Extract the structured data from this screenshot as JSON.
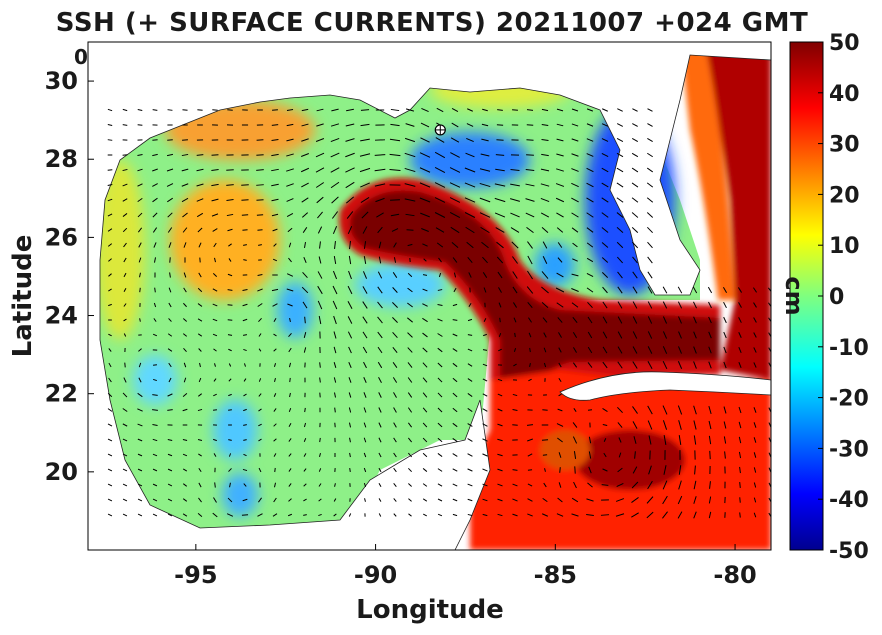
{
  "title": "SSH (+ SURFACE CURRENTS) 20211007 +024 GMT",
  "corner_label": "0",
  "map": {
    "xlabel": "Longitude",
    "ylabel": "Latitude",
    "xlim": [
      -98,
      -79
    ],
    "ylim": [
      18,
      31
    ],
    "xticks": [
      {
        "value": -95,
        "label": "-95"
      },
      {
        "value": -90,
        "label": "-90"
      },
      {
        "value": -85,
        "label": "-85"
      },
      {
        "value": -80,
        "label": "-80"
      }
    ],
    "yticks": [
      {
        "value": 20,
        "label": "20"
      },
      {
        "value": 22,
        "label": "22"
      },
      {
        "value": 24,
        "label": "24"
      },
      {
        "value": 26,
        "label": "26"
      },
      {
        "value": 28,
        "label": "28"
      },
      {
        "value": 30,
        "label": "30"
      }
    ],
    "marker": {
      "lon": -88.2,
      "lat": 28.75
    },
    "land_color": "#ffffff",
    "arrow_color": "#000000"
  },
  "colorbar": {
    "label": "cm",
    "colormap": "jet",
    "range": [
      -50,
      50
    ],
    "ticks": [
      {
        "value": 50,
        "label": "50"
      },
      {
        "value": 40,
        "label": "40"
      },
      {
        "value": 30,
        "label": "30"
      },
      {
        "value": 20,
        "label": "20"
      },
      {
        "value": 10,
        "label": "10"
      },
      {
        "value": 0,
        "label": "0"
      },
      {
        "value": -10,
        "label": "-10"
      },
      {
        "value": -20,
        "label": "-20"
      },
      {
        "value": -30,
        "label": "-30"
      },
      {
        "value": -40,
        "label": "-40"
      },
      {
        "value": -50,
        "label": "-50"
      }
    ]
  }
}
